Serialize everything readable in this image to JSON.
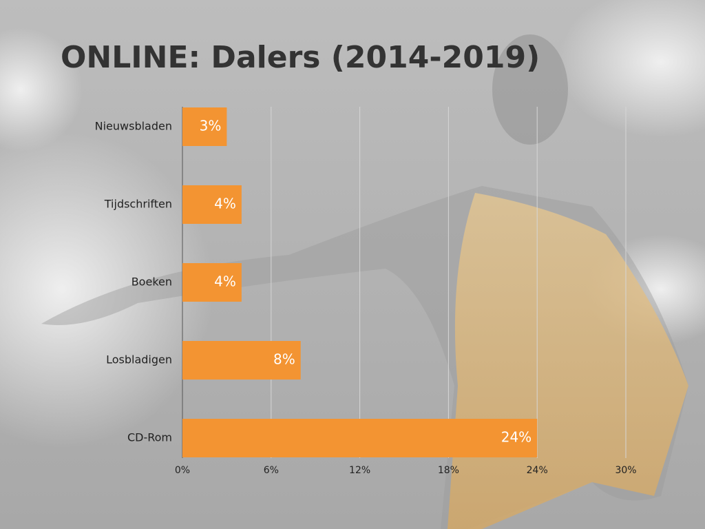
{
  "chart_data": {
    "type": "bar",
    "orientation": "horizontal",
    "title": "ONLINE: Dalers (2014-2019)",
    "categories": [
      "Nieuwsbladen",
      "Tijdschriften",
      "Boeken",
      "Losbladigen",
      "CD-Rom"
    ],
    "values": [
      3,
      4,
      4,
      8,
      24
    ],
    "value_labels": [
      "3%",
      "4%",
      "4%",
      "8%",
      "24%"
    ],
    "color": "#f39432",
    "xlim": [
      0,
      30
    ],
    "xticks": [
      {
        "value": 0,
        "label": "0%"
      },
      {
        "value": 6,
        "label": "6%"
      },
      {
        "value": 12,
        "label": "12%"
      },
      {
        "value": 18,
        "label": "18%"
      },
      {
        "value": 24,
        "label": "24%"
      },
      {
        "value": 30,
        "label": "30%"
      }
    ],
    "grid": true
  }
}
